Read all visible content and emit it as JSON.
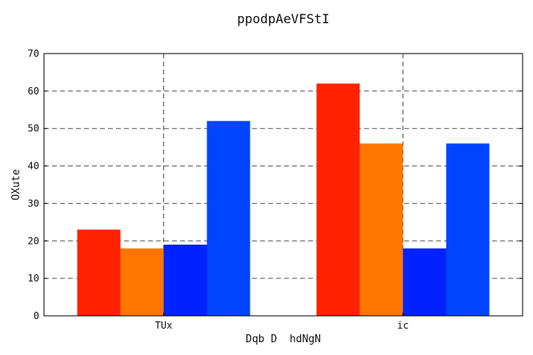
{
  "chart_data": {
    "type": "bar",
    "title": "ppodpAeVFStI",
    "xlabel": "Dqb D  hdNgN",
    "ylabel": "OXute",
    "categories": [
      "TUx",
      "ic"
    ],
    "series": [
      {
        "values": [
          23,
          62
        ],
        "color": "#ff2200"
      },
      {
        "values": [
          18,
          46
        ],
        "color": "#ff7700"
      },
      {
        "values": [
          19,
          18
        ],
        "color": "#0022ff"
      },
      {
        "values": [
          52,
          46
        ],
        "color": "#0044ff"
      }
    ],
    "ylim": [
      0,
      70
    ],
    "yticks": [
      0,
      10,
      20,
      30,
      40,
      50,
      60,
      70
    ],
    "grid": true,
    "legend": "none"
  }
}
